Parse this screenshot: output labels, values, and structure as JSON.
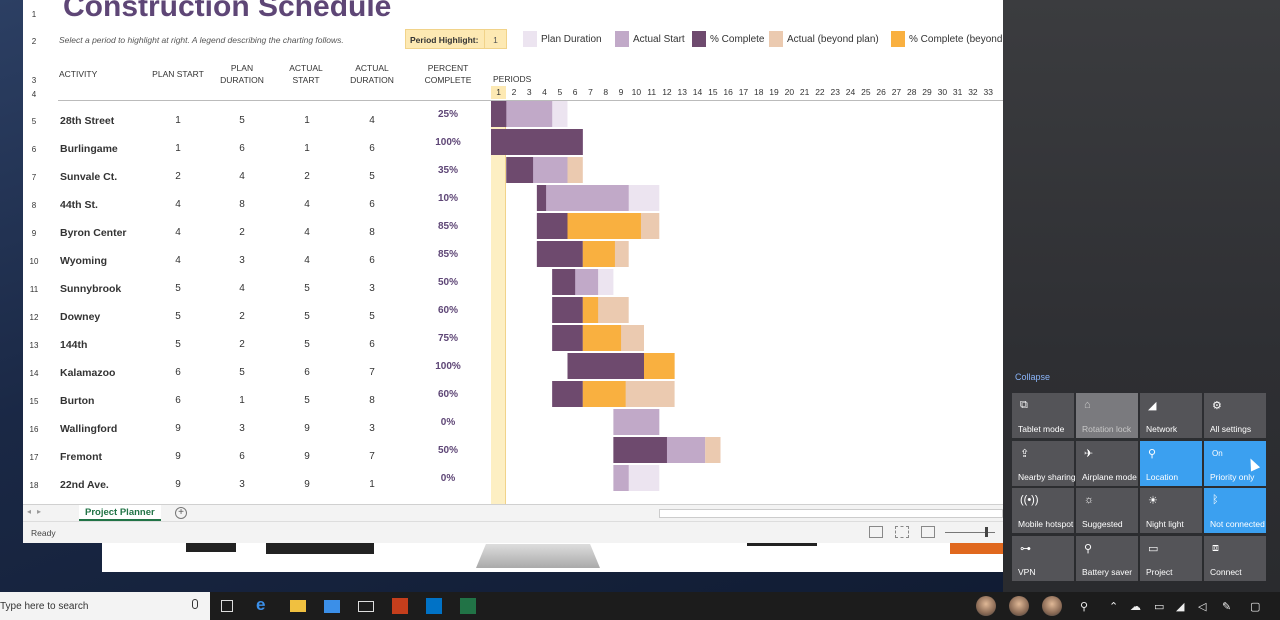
{
  "spreadsheet": {
    "title": "Construction Schedule",
    "subtitle": "Select a period to highlight at right.  A legend describing the charting follows.",
    "period_highlight_label": "Period Highlight:",
    "period_highlight_value": "1",
    "legend": [
      {
        "label": "Plan Duration",
        "color": "#ece4f0"
      },
      {
        "label": "Actual Start",
        "color": "#c1a9c8"
      },
      {
        "label": "% Complete",
        "color": "#6e4a6e"
      },
      {
        "label": "Actual (beyond plan)",
        "color": "#ebcab0"
      },
      {
        "label": "% Complete (beyond",
        "color": "#f9b040"
      }
    ],
    "columns": {
      "activity": "ACTIVITY",
      "plan_start": "PLAN START",
      "plan_duration": "PLAN\nDURATION",
      "actual_start": "ACTUAL\nSTART",
      "actual_duration": "ACTUAL\nDURATION",
      "percent_complete": "PERCENT\nCOMPLETE",
      "periods": "PERIODS"
    },
    "row_numbers": [
      "1",
      "2",
      "3",
      "4",
      "5",
      "6",
      "7",
      "8",
      "9",
      "10",
      "11",
      "12",
      "13",
      "14",
      "15",
      "16",
      "17",
      "18"
    ],
    "periods": [
      "1",
      "2",
      "3",
      "4",
      "5",
      "6",
      "7",
      "8",
      "9",
      "10",
      "11",
      "12",
      "13",
      "14",
      "15",
      "16",
      "17",
      "18",
      "19",
      "20",
      "21",
      "22",
      "23",
      "24",
      "25",
      "26",
      "27",
      "28",
      "29",
      "30",
      "31",
      "32",
      "33"
    ],
    "highlight_period": 1,
    "rows": [
      {
        "activity": "28th Street",
        "plan_start": 1,
        "plan_duration": 5,
        "actual_start": 1,
        "actual_duration": 4,
        "pct": "25%",
        "pct_value": 0.25
      },
      {
        "activity": "Burlingame",
        "plan_start": 1,
        "plan_duration": 6,
        "actual_start": 1,
        "actual_duration": 6,
        "pct": "100%",
        "pct_value": 1.0
      },
      {
        "activity": "Sunvale Ct.",
        "plan_start": 2,
        "plan_duration": 4,
        "actual_start": 2,
        "actual_duration": 5,
        "pct": "35%",
        "pct_value": 0.35
      },
      {
        "activity": "44th St.",
        "plan_start": 4,
        "plan_duration": 8,
        "actual_start": 4,
        "actual_duration": 6,
        "pct": "10%",
        "pct_value": 0.1
      },
      {
        "activity": "Byron Center",
        "plan_start": 4,
        "plan_duration": 2,
        "actual_start": 4,
        "actual_duration": 8,
        "pct": "85%",
        "pct_value": 0.85
      },
      {
        "activity": "Wyoming",
        "plan_start": 4,
        "plan_duration": 3,
        "actual_start": 4,
        "actual_duration": 6,
        "pct": "85%",
        "pct_value": 0.85
      },
      {
        "activity": "Sunnybrook",
        "plan_start": 5,
        "plan_duration": 4,
        "actual_start": 5,
        "actual_duration": 3,
        "pct": "50%",
        "pct_value": 0.5
      },
      {
        "activity": "Downey",
        "plan_start": 5,
        "plan_duration": 2,
        "actual_start": 5,
        "actual_duration": 5,
        "pct": "60%",
        "pct_value": 0.6
      },
      {
        "activity": "144th",
        "plan_start": 5,
        "plan_duration": 2,
        "actual_start": 5,
        "actual_duration": 6,
        "pct": "75%",
        "pct_value": 0.75
      },
      {
        "activity": "Kalamazoo",
        "plan_start": 6,
        "plan_duration": 5,
        "actual_start": 6,
        "actual_duration": 7,
        "pct": "100%",
        "pct_value": 1.0
      },
      {
        "activity": "Burton",
        "plan_start": 6,
        "plan_duration": 1,
        "actual_start": 5,
        "actual_duration": 8,
        "pct": "60%",
        "pct_value": 0.6
      },
      {
        "activity": "Wallingford",
        "plan_start": 9,
        "plan_duration": 3,
        "actual_start": 9,
        "actual_duration": 3,
        "pct": "0%",
        "pct_value": 0.0
      },
      {
        "activity": "Fremont",
        "plan_start": 9,
        "plan_duration": 6,
        "actual_start": 9,
        "actual_duration": 7,
        "pct": "50%",
        "pct_value": 0.5
      },
      {
        "activity": "22nd Ave.",
        "plan_start": 9,
        "plan_duration": 3,
        "actual_start": 9,
        "actual_duration": 1,
        "pct": "0%",
        "pct_value": 0.0
      }
    ],
    "sheet_tab": "Project Planner",
    "add_sheet": "+",
    "status": "Ready"
  },
  "action_center": {
    "collapse": "Collapse",
    "tiles": [
      {
        "label": "Tablet mode",
        "icon": "tablet-mode-icon",
        "glyph": "⧉",
        "state": "",
        "style": "normal"
      },
      {
        "label": "Rotation lock",
        "icon": "rotation-lock-icon",
        "glyph": "⌂",
        "state": "",
        "style": "dim"
      },
      {
        "label": "Network",
        "icon": "network-icon",
        "glyph": "◢",
        "state": "",
        "style": "normal"
      },
      {
        "label": "All settings",
        "icon": "gear-icon",
        "glyph": "⚙",
        "state": "",
        "style": "normal"
      },
      {
        "label": "Nearby sharing",
        "icon": "nearby-sharing-icon",
        "glyph": "⇪",
        "state": "",
        "style": "normal"
      },
      {
        "label": "Airplane mode",
        "icon": "airplane-icon",
        "glyph": "✈",
        "state": "",
        "style": "normal"
      },
      {
        "label": "Location",
        "icon": "location-icon",
        "glyph": "⚲",
        "state": "",
        "style": "active"
      },
      {
        "label": "Priority only",
        "icon": "focus-assist-icon",
        "glyph": "",
        "state": "On",
        "style": "active"
      },
      {
        "label": "Mobile hotspot",
        "icon": "hotspot-icon",
        "glyph": "((•))",
        "state": "",
        "style": "normal"
      },
      {
        "label": "Suggested",
        "icon": "brightness-icon",
        "glyph": "☼",
        "state": "",
        "style": "normal"
      },
      {
        "label": "Night light",
        "icon": "night-light-icon",
        "glyph": "☀",
        "state": "",
        "style": "normal"
      },
      {
        "label": "Not connected",
        "icon": "bluetooth-icon",
        "glyph": "ᛒ",
        "state": "",
        "style": "active"
      },
      {
        "label": "VPN",
        "icon": "vpn-icon",
        "glyph": "⊶",
        "state": "",
        "style": "normal"
      },
      {
        "label": "Battery saver",
        "icon": "battery-saver-icon",
        "glyph": "⚲",
        "state": "",
        "style": "normal"
      },
      {
        "label": "Project",
        "icon": "project-icon",
        "glyph": "▭",
        "state": "",
        "style": "normal"
      },
      {
        "label": "Connect",
        "icon": "connect-icon",
        "glyph": "⧈",
        "state": "",
        "style": "normal"
      }
    ]
  },
  "taskbar": {
    "search_placeholder": "Type here to search"
  }
}
